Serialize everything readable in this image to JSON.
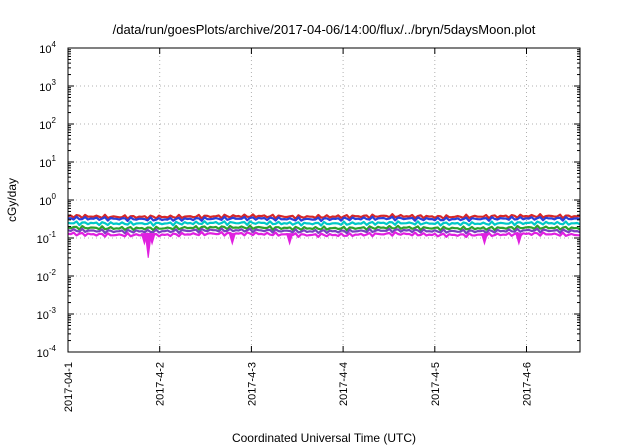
{
  "chart_data": {
    "type": "line",
    "title": "/data/run/goesPlots/archive/2017-04-06/14:00/flux/../bryn/5daysMoon.plot",
    "xlabel": "Coordinated Universal Time (UTC)",
    "ylabel": "cGy/day",
    "yscale": "log",
    "ylim": [
      0.0001,
      10000
    ],
    "y_ticks": [
      {
        "base": "10",
        "exp": "-4",
        "value": 0.0001
      },
      {
        "base": "10",
        "exp": "-3",
        "value": 0.001
      },
      {
        "base": "10",
        "exp": "-2",
        "value": 0.01
      },
      {
        "base": "10",
        "exp": "-1",
        "value": 0.1
      },
      {
        "base": "10",
        "exp": "0",
        "value": 1
      },
      {
        "base": "10",
        "exp": "1",
        "value": 10
      },
      {
        "base": "10",
        "exp": "2",
        "value": 100
      },
      {
        "base": "10",
        "exp": "3",
        "value": 1000
      },
      {
        "base": "10",
        "exp": "4",
        "value": 10000
      }
    ],
    "xlim": [
      "2017-04-01 00:00",
      "2017-04-06 14:00"
    ],
    "x_ticks": [
      {
        "label": "2017-04-1",
        "date": "2017-04-01 00:00"
      },
      {
        "label": "2017-4-2",
        "date": "2017-04-02 00:00"
      },
      {
        "label": "2017-4-3",
        "date": "2017-04-03 00:00"
      },
      {
        "label": "2017-4-4",
        "date": "2017-04-04 00:00"
      },
      {
        "label": "2017-4-5",
        "date": "2017-04-05 00:00"
      },
      {
        "label": "2017-4-6",
        "date": "2017-04-06 00:00"
      }
    ],
    "grid": true,
    "x_dates": [
      "2017-04-01 00:00",
      "2017-04-01 12:00",
      "2017-04-02 00:00",
      "2017-04-02 12:00",
      "2017-04-03 00:00",
      "2017-04-03 12:00",
      "2017-04-04 00:00",
      "2017-04-04 12:00",
      "2017-04-05 00:00",
      "2017-04-05 12:00",
      "2017-04-06 00:00",
      "2017-04-06 14:00"
    ],
    "series": [
      {
        "color": "#d62728",
        "values": [
          0.38,
          0.36,
          0.36,
          0.37,
          0.38,
          0.36,
          0.37,
          0.38,
          0.36,
          0.37,
          0.38,
          0.37
        ]
      },
      {
        "color": "#2b3fd8",
        "values": [
          0.33,
          0.32,
          0.31,
          0.32,
          0.33,
          0.31,
          0.32,
          0.33,
          0.31,
          0.32,
          0.33,
          0.32
        ]
      },
      {
        "color": "#00c8c8",
        "values": [
          0.25,
          0.24,
          0.24,
          0.25,
          0.25,
          0.24,
          0.24,
          0.25,
          0.24,
          0.24,
          0.25,
          0.24
        ]
      },
      {
        "color": "#2ca02c",
        "values": [
          0.19,
          0.18,
          0.18,
          0.19,
          0.19,
          0.18,
          0.18,
          0.19,
          0.18,
          0.18,
          0.19,
          0.18
        ]
      },
      {
        "color": "#7b3fbf",
        "values": [
          0.16,
          0.15,
          0.15,
          0.16,
          0.16,
          0.15,
          0.15,
          0.16,
          0.15,
          0.15,
          0.16,
          0.15
        ]
      },
      {
        "color": "#e020e0",
        "values": [
          0.13,
          0.12,
          0.12,
          0.13,
          0.13,
          0.12,
          0.12,
          0.13,
          0.12,
          0.12,
          0.13,
          0.12
        ]
      }
    ],
    "minima": [
      {
        "date": "2017-04-01 20:00",
        "y": 0.07
      },
      {
        "date": "2017-04-01 22:00",
        "y": 0.07
      },
      {
        "date": "2017-04-01 21:00",
        "y": 0.07
      },
      {
        "date": "2017-04-01 21:00",
        "y": 0.03
      },
      {
        "date": "2017-04-02 19:00",
        "y": 0.07
      },
      {
        "date": "2017-04-03 10:00",
        "y": 0.07
      },
      {
        "date": "2017-04-05 13:00",
        "y": 0.07
      },
      {
        "date": "2017-04-05 22:00",
        "y": 0.07
      }
    ]
  }
}
